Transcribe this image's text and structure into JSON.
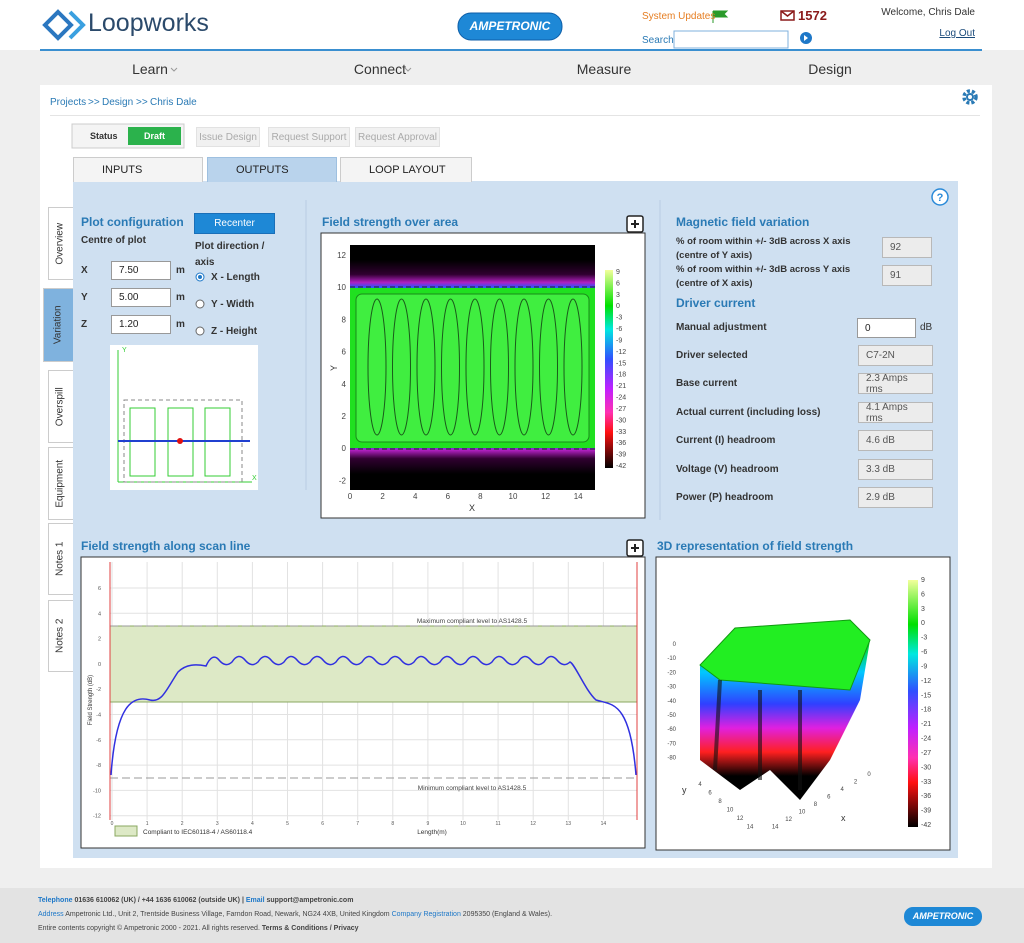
{
  "header": {
    "brand": "Loopworks",
    "partner": "AMPETRONIC",
    "system_updates": "System Updates",
    "search_label": "Search",
    "message_count": "1572",
    "welcome": "Welcome, Chris Dale",
    "logout": "Log Out"
  },
  "nav": [
    "Learn",
    "Connect",
    "Measure",
    "Design"
  ],
  "breadcrumb": {
    "items": [
      "Projects",
      "Design",
      "Chris Dale"
    ],
    "separator": ">>"
  },
  "status": {
    "label": "Status",
    "value": "Draft",
    "actions": [
      "Issue Design",
      "Request Support",
      "Request Approval"
    ]
  },
  "tabs": [
    "INPUTS",
    "OUTPUTS",
    "LOOP LAYOUT"
  ],
  "side_tabs": [
    "Overview",
    "Variation",
    "Overspill",
    "Equipment",
    "Notes 1",
    "Notes 2"
  ],
  "plot_config": {
    "title": "Plot configuration",
    "recenter": "Recenter",
    "centre_label": "Centre of plot",
    "direction_label": "Plot direction / axis",
    "fields": [
      {
        "label": "X",
        "value": "7.50",
        "unit": "m"
      },
      {
        "label": "Y",
        "value": "5.00",
        "unit": "m"
      },
      {
        "label": "Z",
        "value": "1.20",
        "unit": "m"
      }
    ],
    "options": [
      "X - Length",
      "Y - Width",
      "Z - Height"
    ],
    "diagram_axes": [
      "X",
      "Y"
    ]
  },
  "field_area": {
    "title": "Field strength over area",
    "x_label": "X",
    "y_label": "Y",
    "xticks": [
      "0",
      "2",
      "4",
      "6",
      "8",
      "10",
      "12",
      "14"
    ],
    "yticks": [
      "12",
      "10",
      "8",
      "6",
      "4",
      "2",
      "0",
      "-2"
    ],
    "colorbar_ticks": [
      "9",
      "6",
      "3",
      "0",
      "-3",
      "-6",
      "-9",
      "-12",
      "-15",
      "-18",
      "-21",
      "-24",
      "-27",
      "-30",
      "-33",
      "-36",
      "-39",
      "-42"
    ]
  },
  "variation": {
    "title": "Magnetic field variation",
    "rows": [
      {
        "label": "% of room within +/- 3dB across X axis (centre of Y axis)",
        "value": "92"
      },
      {
        "label": "% of room within +/- 3dB across Y axis (centre of X axis)",
        "value": "91"
      }
    ]
  },
  "driver": {
    "title": "Driver current",
    "manual_label": "Manual adjustment",
    "manual_value": "0",
    "manual_unit": "dB",
    "rows": [
      {
        "label": "Driver selected",
        "value": "C7-2N"
      },
      {
        "label": "Base current",
        "value": "2.3 Amps rms"
      },
      {
        "label": "Actual current (including loss)",
        "value": "4.1 Amps rms"
      },
      {
        "label": "Current (I) headroom",
        "value": "4.6 dB"
      },
      {
        "label": "Voltage (V) headroom",
        "value": "3.3 dB"
      },
      {
        "label": "Power (P) headroom",
        "value": "2.9 dB"
      }
    ]
  },
  "scan": {
    "title": "Field strength along scan line",
    "max_label": "Maximum compliant level to AS1428.5",
    "min_label": "Minimum compliant level to AS1428.5",
    "y_label": "Field Strength (dB)",
    "x_label": "Length(m)",
    "legend": "Compliant to IEC60118-4 / AS60118.4",
    "yticks": [
      "6",
      "4",
      "2",
      "0",
      "-2",
      "-4",
      "-6",
      "-8",
      "-10",
      "-12"
    ],
    "xticks": [
      "0",
      "1",
      "2",
      "3",
      "4",
      "5",
      "6",
      "7",
      "8",
      "9",
      "10",
      "11",
      "12",
      "13",
      "14"
    ]
  },
  "view3d": {
    "title": "3D representation of field strength",
    "x_label": "x",
    "y_label": "y",
    "zticks": [
      "0",
      "-10",
      "-20",
      "-30",
      "-40",
      "-50",
      "-60",
      "-70",
      "-80"
    ],
    "xticks": [
      "0",
      "2",
      "4",
      "6",
      "8",
      "10",
      "12",
      "14"
    ],
    "yticks": [
      "4",
      "6",
      "8",
      "10",
      "12",
      "14"
    ],
    "colorbar_ticks": [
      "9",
      "6",
      "3",
      "0",
      "-3",
      "-6",
      "-9",
      "-12",
      "-15",
      "-18",
      "-21",
      "-24",
      "-27",
      "-30",
      "-33",
      "-36",
      "-39",
      "-42"
    ]
  },
  "footer": {
    "phone_label": "Telephone",
    "phone": "01636 610062 (UK) / +44 1636 610062 (outside UK) |",
    "email_label": "Email",
    "email": "support@ampetronic.com",
    "address_label": "Address",
    "address": "Ampetronic Ltd., Unit 2, Trentside Business Village, Farndon Road, Newark, NG24 4XB, United Kingdom",
    "registration_label": "Company Registration",
    "registration": "2095350 (England & Wales).",
    "copyright": "Entire contents copyright © Ampetronic 2000 - 2021. All rights reserved.",
    "links": "Terms & Conditions / Privacy",
    "logo": "AMPETRONIC"
  }
}
